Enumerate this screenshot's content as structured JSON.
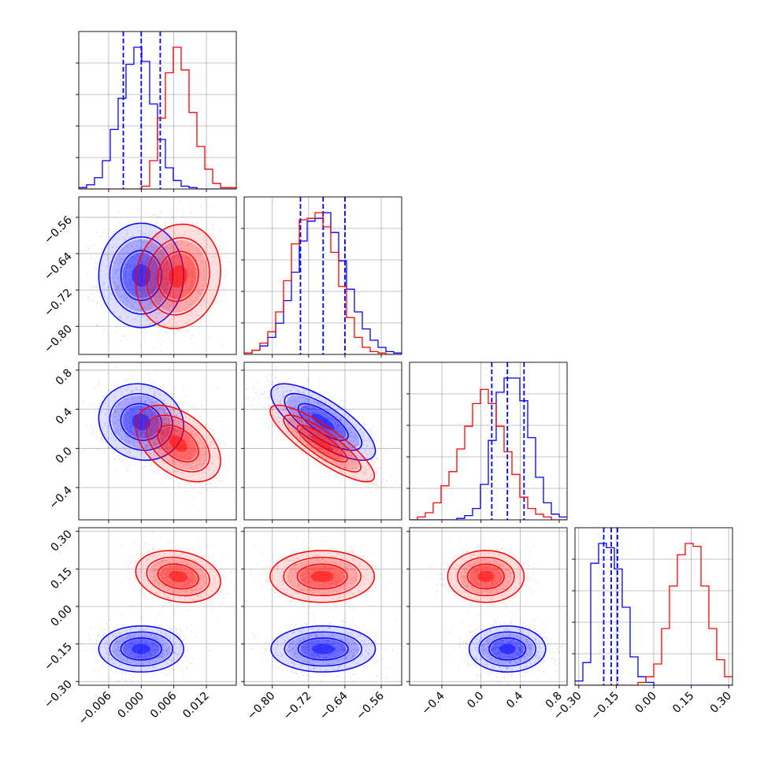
{
  "chart_data": {
    "type": "corner",
    "grid": true,
    "colors": {
      "blue": "#0000ff",
      "red": "#ff0000"
    },
    "params": [
      {
        "range": [
          -0.0115,
          0.0175
        ],
        "ticks": [
          -0.006,
          0.0,
          0.006,
          0.012
        ],
        "tick_labels": [
          "−0.006",
          "0.000",
          "0.006",
          "0.012"
        ]
      },
      {
        "range": [
          -0.862,
          -0.515
        ],
        "ticks": [
          -0.8,
          -0.72,
          -0.64,
          -0.56
        ],
        "tick_labels": [
          "−0.80",
          "−0.72",
          "−0.64",
          "−0.56"
        ]
      },
      {
        "range": [
          -0.73,
          0.88
        ],
        "ticks": [
          -0.4,
          0.0,
          0.4,
          0.8
        ],
        "tick_labels": [
          "−0.4",
          "0.0",
          "0.4",
          "0.8"
        ]
      },
      {
        "range": [
          -0.315,
          0.315
        ],
        "ticks": [
          -0.3,
          -0.15,
          0.0,
          0.15,
          0.3
        ],
        "tick_labels": [
          "−0.30",
          "−0.15",
          "0.00",
          "0.15",
          "0.30"
        ]
      }
    ],
    "series": [
      {
        "color": "#0000ff",
        "means": [
          0.0,
          -0.688,
          0.27,
          -0.17
        ],
        "quantiles": [
          [
            -0.0033,
            0.0,
            0.0035
          ],
          [
            -0.738,
            -0.688,
            -0.64
          ],
          [
            0.11,
            0.27,
            0.44
          ],
          [
            -0.2,
            -0.17,
            -0.145
          ]
        ],
        "hist": [
          [
            0.01,
            0.03,
            0.08,
            0.2,
            0.42,
            0.64,
            0.88,
            1.0,
            0.9,
            0.6,
            0.35,
            0.15,
            0.06,
            0.02,
            0.01,
            0.0,
            0.0,
            0.0,
            0.0,
            0.0
          ],
          [
            0.01,
            0.03,
            0.06,
            0.12,
            0.22,
            0.38,
            0.58,
            0.8,
            0.94,
            0.96,
            1.0,
            0.86,
            0.66,
            0.46,
            0.3,
            0.18,
            0.1,
            0.05,
            0.02,
            0.01
          ],
          [
            0.0,
            0.0,
            0.0,
            0.0,
            0.0,
            0.0,
            0.01,
            0.03,
            0.08,
            0.25,
            0.56,
            0.9,
            1.0,
            1.0,
            0.84,
            0.58,
            0.3,
            0.12,
            0.04,
            0.02
          ],
          [
            0.03,
            0.16,
            0.86,
            1.0,
            0.97,
            0.82,
            0.55,
            0.2,
            0.06,
            0.02,
            0.0,
            0.0,
            0.0,
            0.0,
            0.0,
            0.0,
            0.0,
            0.0,
            0.0,
            0.0
          ]
        ]
      },
      {
        "color": "#ff0000",
        "means": [
          0.0068,
          -0.69,
          0.05,
          0.12
        ],
        "quantiles": null,
        "hist": [
          [
            0.0,
            0.0,
            0.0,
            0.0,
            0.0,
            0.0,
            0.0,
            0.0,
            0.02,
            0.2,
            0.5,
            0.82,
            1.0,
            0.84,
            0.54,
            0.3,
            0.14,
            0.04,
            0.01,
            0.01
          ],
          [
            0.01,
            0.03,
            0.08,
            0.16,
            0.3,
            0.52,
            0.78,
            0.95,
            0.96,
            1.0,
            0.9,
            0.72,
            0.48,
            0.26,
            0.12,
            0.05,
            0.02,
            0.01,
            0.0,
            0.0
          ],
          [
            0.0,
            0.02,
            0.05,
            0.12,
            0.24,
            0.34,
            0.5,
            0.66,
            0.82,
            0.92,
            0.82,
            0.66,
            0.48,
            0.32,
            0.16,
            0.08,
            0.04,
            0.02,
            0.0,
            0.0
          ],
          [
            0.0,
            0.0,
            0.0,
            0.0,
            0.0,
            0.0,
            0.0,
            0.0,
            0.02,
            0.06,
            0.15,
            0.4,
            0.7,
            0.92,
            1.0,
            0.98,
            0.7,
            0.4,
            0.18,
            0.06
          ]
        ]
      }
    ]
  }
}
